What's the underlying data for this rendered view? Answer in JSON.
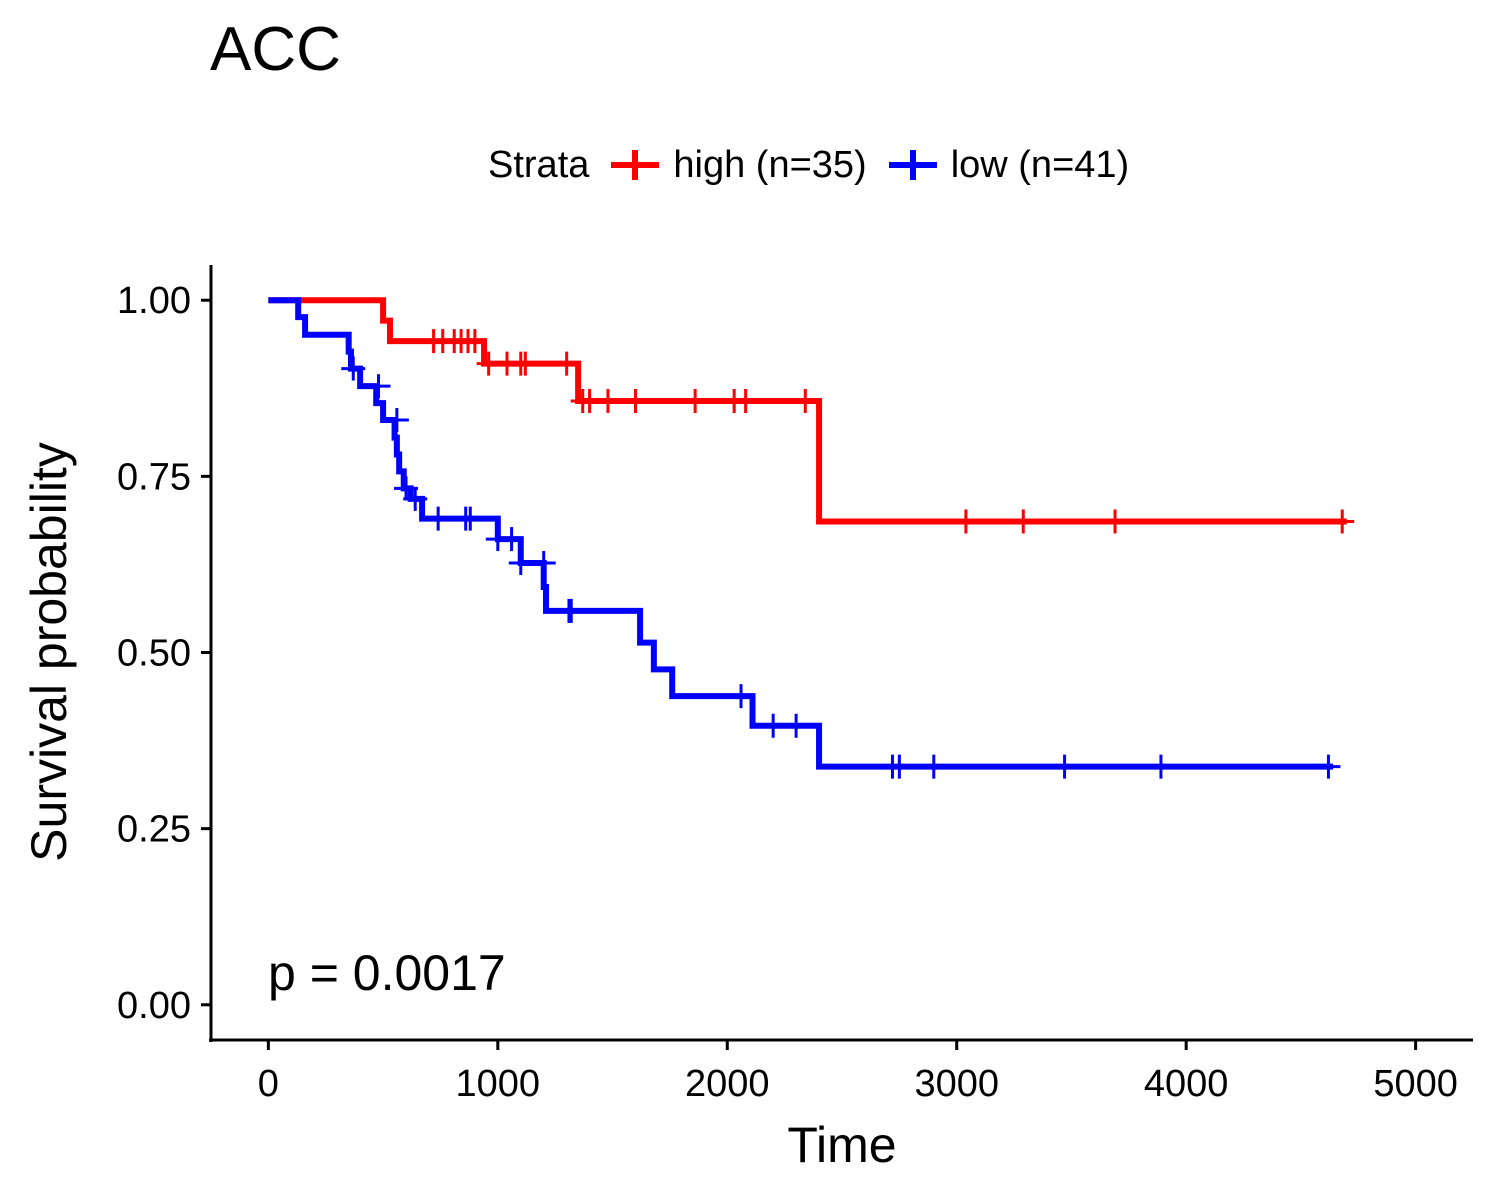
{
  "title": "ACC",
  "legend": {
    "title": "Strata",
    "position": "top"
  },
  "chart_data": {
    "type": "line",
    "subtype": "kaplan-meier",
    "title": "ACC",
    "xlabel": "Time",
    "ylabel": "Survival probability",
    "xlim": [
      -250,
      5250
    ],
    "ylim": [
      -0.05,
      1.05
    ],
    "xticks": [
      0,
      1000,
      2000,
      3000,
      4000,
      5000
    ],
    "yticks": [
      0.0,
      0.25,
      0.5,
      0.75,
      1.0
    ],
    "ytick_labels": [
      "0.00",
      "0.25",
      "0.50",
      "0.75",
      "1.00"
    ],
    "grid": false,
    "legend_position": "top",
    "annotation": "p = 0.0017",
    "series": [
      {
        "name": "high (n=35)",
        "color": "#ff0000",
        "steps": [
          [
            0,
            1.0
          ],
          [
            500,
            0.971
          ],
          [
            530,
            0.942
          ],
          [
            940,
            0.91
          ],
          [
            1350,
            0.857
          ],
          [
            2400,
            0.686
          ],
          [
            4700,
            0.686
          ]
        ],
        "censor": [
          [
            720,
            0.942
          ],
          [
            760,
            0.942
          ],
          [
            810,
            0.942
          ],
          [
            840,
            0.942
          ],
          [
            870,
            0.942
          ],
          [
            900,
            0.942
          ],
          [
            960,
            0.91
          ],
          [
            1040,
            0.91
          ],
          [
            1100,
            0.91
          ],
          [
            1120,
            0.91
          ],
          [
            1300,
            0.91
          ],
          [
            1370,
            0.857
          ],
          [
            1400,
            0.857
          ],
          [
            1480,
            0.857
          ],
          [
            1600,
            0.857
          ],
          [
            1860,
            0.857
          ],
          [
            2030,
            0.857
          ],
          [
            2080,
            0.857
          ],
          [
            2340,
            0.857
          ],
          [
            3040,
            0.686
          ],
          [
            3290,
            0.686
          ],
          [
            3690,
            0.686
          ],
          [
            4680,
            0.686
          ]
        ]
      },
      {
        "name": "low (n=41)",
        "color": "#0000ff",
        "steps": [
          [
            0,
            1.0
          ],
          [
            130,
            0.976
          ],
          [
            160,
            0.951
          ],
          [
            350,
            0.927
          ],
          [
            360,
            0.903
          ],
          [
            400,
            0.878
          ],
          [
            470,
            0.854
          ],
          [
            500,
            0.83
          ],
          [
            550,
            0.805
          ],
          [
            560,
            0.781
          ],
          [
            570,
            0.757
          ],
          [
            590,
            0.733
          ],
          [
            620,
            0.718
          ],
          [
            670,
            0.69
          ],
          [
            1000,
            0.661
          ],
          [
            1100,
            0.627
          ],
          [
            1200,
            0.593
          ],
          [
            1210,
            0.559
          ],
          [
            1620,
            0.514
          ],
          [
            1680,
            0.476
          ],
          [
            1760,
            0.438
          ],
          [
            2110,
            0.396
          ],
          [
            2400,
            0.338
          ],
          [
            4640,
            0.338
          ]
        ],
        "censor": [
          [
            370,
            0.903
          ],
          [
            480,
            0.878
          ],
          [
            560,
            0.83
          ],
          [
            600,
            0.733
          ],
          [
            640,
            0.718
          ],
          [
            740,
            0.69
          ],
          [
            860,
            0.69
          ],
          [
            880,
            0.69
          ],
          [
            1000,
            0.661
          ],
          [
            1060,
            0.661
          ],
          [
            1100,
            0.627
          ],
          [
            1200,
            0.627
          ],
          [
            1310,
            0.559
          ],
          [
            1320,
            0.559
          ],
          [
            2060,
            0.438
          ],
          [
            2200,
            0.396
          ],
          [
            2300,
            0.396
          ],
          [
            2720,
            0.338
          ],
          [
            2750,
            0.338
          ],
          [
            2900,
            0.338
          ],
          [
            3470,
            0.338
          ],
          [
            3890,
            0.338
          ],
          [
            4620,
            0.338
          ]
        ]
      }
    ]
  }
}
